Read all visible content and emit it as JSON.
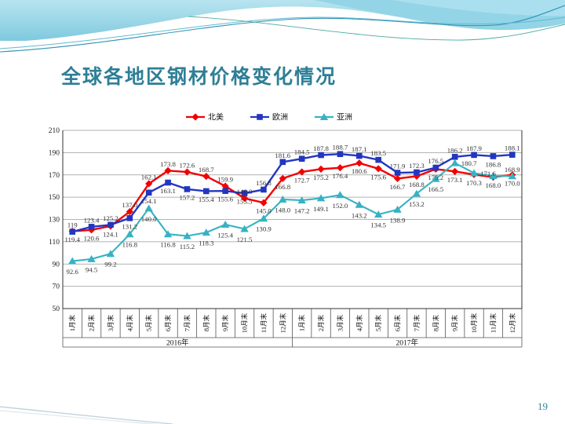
{
  "slide": {
    "title": "全球各地区钢材价格变化情况",
    "page_number": "19"
  },
  "chart_data": {
    "type": "line",
    "title": "",
    "xlabel": "",
    "ylabel": "",
    "ylim": [
      50,
      210
    ],
    "y_ticks": [
      50,
      70,
      90,
      110,
      130,
      150,
      170,
      190,
      210
    ],
    "grid": true,
    "legend_position": "top-center",
    "legend": [
      "北美",
      "欧洲",
      "亚洲"
    ],
    "x_axis": {
      "month_labels": [
        "1月末",
        "2月末",
        "3月末",
        "4月末",
        "5月末",
        "6月末",
        "7月末",
        "8月末",
        "9月末",
        "10月末",
        "11月末",
        "12月末"
      ],
      "year_groups": [
        "2016年",
        "2017年"
      ]
    },
    "series": [
      {
        "name": "北美",
        "color": "#f20000",
        "marker": "diamond",
        "values": [
          119.4,
          120.6,
          124.1,
          137.0,
          162.1,
          173.8,
          172.6,
          168.7,
          159.9,
          149.0,
          145.0,
          166.8,
          172.7,
          175.2,
          176.4,
          180.6,
          175.6,
          166.7,
          168.8,
          175.2,
          173.1,
          170.3,
          168.0,
          170.0
        ],
        "labels": [
          "119.4",
          "120.6",
          "124.1",
          "137.0",
          "162.1",
          "173.8",
          "172.6",
          "168.7",
          "159.9",
          "149.0",
          "145.0",
          "166.8",
          "172.7",
          "175.2",
          "176.4",
          "180.6",
          "175.6",
          "166.7",
          "168.8",
          "175.2",
          "173.1",
          "170.3",
          "168.0",
          "170.0"
        ],
        "label_pos": [
          "b",
          "b",
          "b",
          "a",
          "a",
          "a",
          "a",
          "a",
          "a",
          "a",
          "b",
          "b",
          "b",
          "b",
          "b",
          "b",
          "b",
          "b",
          "b",
          "b",
          "b",
          "b",
          "b",
          "b"
        ]
      },
      {
        "name": "欧洲",
        "color": "#2236c0",
        "marker": "square",
        "values": [
          119,
          123.4,
          125.2,
          131.2,
          154.1,
          163.1,
          157.2,
          155.4,
          155.6,
          153.5,
          156.8,
          181.6,
          184.5,
          187.8,
          188.7,
          187.1,
          183.5,
          171.9,
          172.3,
          176.5,
          186.2,
          187.9,
          186.8,
          188.1
        ],
        "labels": [
          "119",
          "123.4",
          "125.2",
          "131.2",
          "154.1",
          "163.1",
          "157.2",
          "155.4",
          "155.6",
          "153.5",
          "156.8",
          "181.6",
          "184.5",
          "187.8",
          "188.7",
          "187.1",
          "183.5",
          "171.9",
          "172.3",
          "176.5",
          "186.2",
          "187.9",
          "186.8",
          "188.1"
        ],
        "label_pos": [
          "a",
          "a",
          "a",
          "b",
          "b",
          "b",
          "b",
          "b",
          "b",
          "b",
          "a",
          "a",
          "a",
          "a",
          "a",
          "a",
          "a",
          "a",
          "a",
          "a",
          "a",
          "a",
          "b",
          "a"
        ]
      },
      {
        "name": "亚洲",
        "color": "#37b2c3",
        "marker": "triangle",
        "values": [
          92.6,
          94.5,
          99.2,
          116.8,
          140.0,
          116.8,
          115.2,
          118.3,
          125.4,
          121.5,
          130.9,
          148.0,
          147.2,
          149.1,
          152.0,
          143.2,
          134.5,
          138.9,
          153.2,
          166.5,
          180.7,
          171.6,
          169.0,
          168.9
        ],
        "labels": [
          "92.6",
          "94.5",
          "99.2",
          "116.8",
          "140.0",
          "116.8",
          "115.2",
          "118.3",
          "125.4",
          "121.5",
          "130.9",
          "148.0",
          "147.2",
          "149.1",
          "152.0",
          "143.2",
          "134.5",
          "138.9",
          "153.2",
          "166.5",
          "180.7",
          "171.6",
          "",
          "168.9"
        ],
        "label_pos": [
          "b",
          "b",
          "b",
          "b",
          "b",
          "b",
          "b",
          "b",
          "b",
          "b",
          "b",
          "b",
          "b",
          "b",
          "b",
          "b",
          "b",
          "b",
          "b",
          "b",
          "r",
          "r",
          "",
          "a"
        ]
      }
    ]
  }
}
